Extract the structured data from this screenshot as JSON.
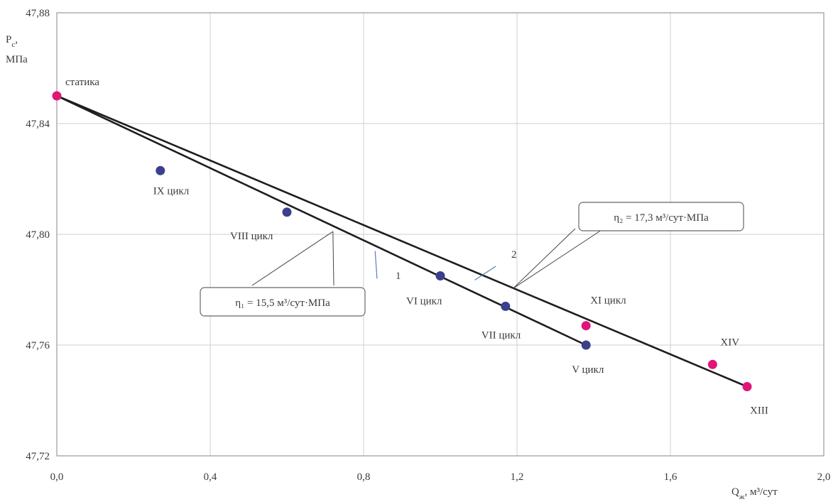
{
  "chart_data": {
    "type": "scatter",
    "xlim": [
      0,
      2.0
    ],
    "ylim": [
      47.72,
      47.88
    ],
    "xticks": [
      "0,0",
      "0,4",
      "0,8",
      "1,2",
      "1,6",
      "2,0"
    ],
    "yticks": [
      "47,72",
      "47,76",
      "47,80",
      "47,84",
      "47,88"
    ],
    "ylabel_line1": "P",
    "ylabel_sub": "c",
    "ylabel_line2": "МПа",
    "xlabel_main": "Q",
    "xlabel_sub": "ж",
    "xlabel_unit": "м³/сут",
    "grid": true,
    "series": [
      {
        "color": "#3b3f8c",
        "points": [
          {
            "x": 0.27,
            "y": 47.823,
            "label": "IX цикл"
          },
          {
            "x": 0.6,
            "y": 47.808,
            "label": "VIII цикл"
          },
          {
            "x": 1.0,
            "y": 47.785,
            "label": "VI цикл"
          },
          {
            "x": 1.17,
            "y": 47.774,
            "label": "VII цикл"
          },
          {
            "x": 1.38,
            "y": 47.76,
            "label": "V цикл"
          }
        ]
      },
      {
        "color": "#e0157a",
        "points": [
          {
            "x": 0.0,
            "y": 47.85,
            "label": "статика"
          },
          {
            "x": 1.38,
            "y": 47.767,
            "label": "XI цикл"
          },
          {
            "x": 1.71,
            "y": 47.753,
            "label": "XIV"
          },
          {
            "x": 1.8,
            "y": 47.745,
            "label": "XIII"
          }
        ]
      }
    ],
    "lines": [
      {
        "label": "1",
        "x": [
          0.0,
          1.38
        ],
        "y": [
          47.85,
          47.76
        ],
        "annotation": "η₁ = 15,5 м³/сут·МПа"
      },
      {
        "label": "2",
        "x": [
          0.0,
          1.8
        ],
        "y": [
          47.85,
          47.745
        ],
        "annotation": "η₂ = 17,3 м³/сут·МПа"
      }
    ]
  }
}
